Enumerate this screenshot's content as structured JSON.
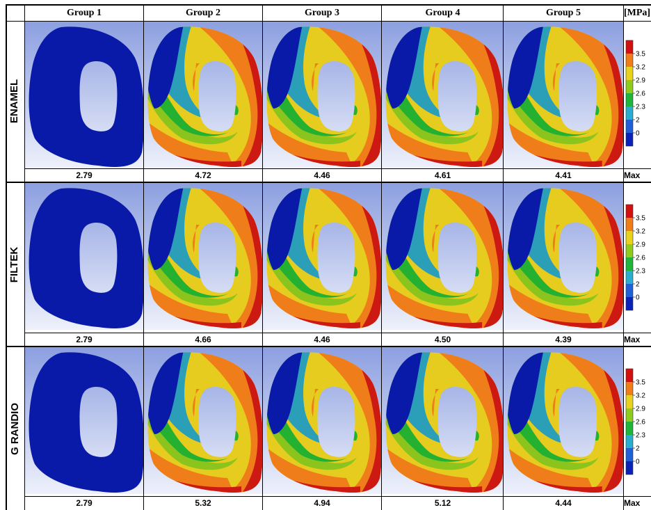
{
  "columns": [
    "Group 1",
    "Group 2",
    "Group 3",
    "Group 4",
    "Group 5"
  ],
  "unit_label": "[MPa]",
  "max_label": "Max",
  "rows": [
    {
      "label": "ENAMEL",
      "max_values": [
        "2.79",
        "4.72",
        "4.46",
        "4.61",
        "4.41"
      ]
    },
    {
      "label": "FILTEK",
      "max_values": [
        "2.79",
        "4.66",
        "4.46",
        "4.50",
        "4.39"
      ]
    },
    {
      "label": "G RANDIO",
      "max_values": [
        "2.79",
        "5.32",
        "4.94",
        "5.12",
        "4.44"
      ]
    }
  ],
  "legend": {
    "ticks": [
      "3.5",
      "3.2",
      "2.9",
      "2.6",
      "2.3",
      "2",
      "0"
    ],
    "colors": [
      "#d21010",
      "#f07d18",
      "#e8d21e",
      "#8fcc1e",
      "#1fb43a",
      "#2aaed0",
      "#1f5fd8",
      "#0a22b8"
    ]
  },
  "contour_colors": {
    "blue": "#0a1aa8",
    "cyan": "#2b9fb8",
    "green": "#24b030",
    "yellowgreen": "#8cc41e",
    "yellow": "#e6cc1e",
    "orange": "#ef7d1a",
    "red": "#cc1a12",
    "background_top": "#8c9fe0",
    "background_bottom": "#eef1fb"
  }
}
